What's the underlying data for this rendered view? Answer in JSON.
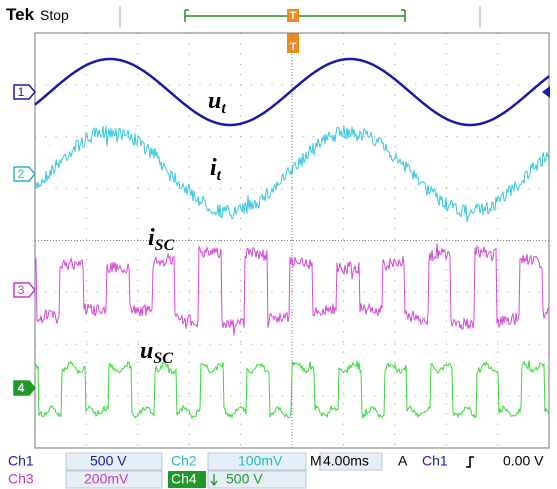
{
  "header": {
    "brand": "Tek",
    "status": "Stop",
    "trigger_marker": "T"
  },
  "channel_markers": [
    "1",
    "2",
    "3",
    "4"
  ],
  "waveform_labels": [
    {
      "symbol": "u",
      "subscript": "t"
    },
    {
      "symbol": "i",
      "subscript": "t"
    },
    {
      "symbol": "i",
      "subscript": "SC"
    },
    {
      "symbol": "u",
      "subscript": "SC"
    }
  ],
  "readout": {
    "ch1": {
      "label": "Ch1",
      "scale": "500 V"
    },
    "ch2": {
      "label": "Ch2",
      "scale": "100mV"
    },
    "ch3": {
      "label": "Ch3",
      "scale": "200mV"
    },
    "ch4": {
      "label": "Ch4",
      "scale": "500 V"
    },
    "timebase": {
      "label": "M",
      "value": "4.00ms"
    },
    "trigger": {
      "mode": "A",
      "source": "Ch1",
      "level": "0.00 V"
    }
  }
}
